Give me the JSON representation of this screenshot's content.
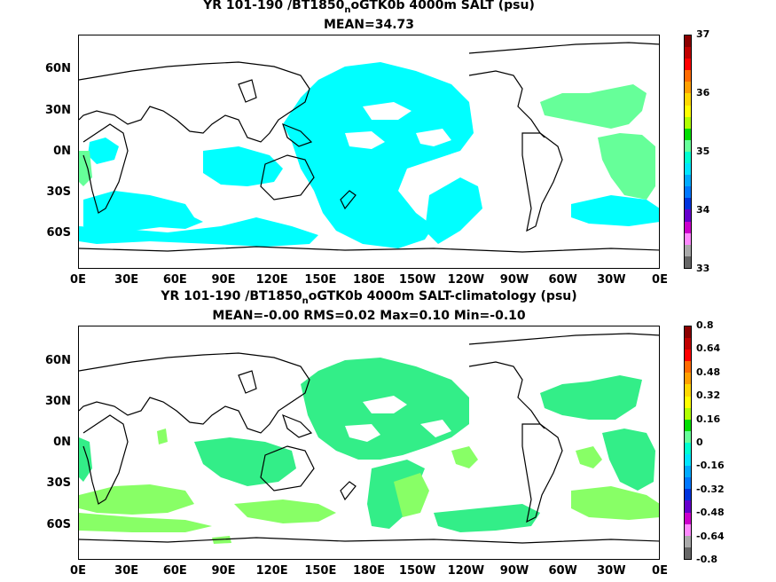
{
  "panel1": {
    "title_line1_pre": "YR 101-190 /BT1850",
    "title_sub": "n",
    "title_line1_post": "oGTK0b 4000m SALT (psu)",
    "title_line2": "MEAN=34.73",
    "colorbar_labels": [
      "37",
      "36",
      "35",
      "34",
      "33"
    ],
    "colorbar_colors": [
      "#8b0000",
      "#c00000",
      "#ff0000",
      "#ff6a00",
      "#ff9f00",
      "#ffd700",
      "#ffff00",
      "#b0ff00",
      "#00dd00",
      "#66ff99",
      "#00ffd0",
      "#00e5ff",
      "#00aaff",
      "#0077ff",
      "#0033dd",
      "#6600cc",
      "#cc00cc",
      "#ff88ff",
      "#aaaaaa",
      "#666666"
    ]
  },
  "panel2": {
    "title_line1_pre": "YR 101-190 /BT1850",
    "title_sub": "n",
    "title_line1_post": "oGTK0b 4000m SALT-climatology (psu)",
    "title_line2": "MEAN=-0.00   RMS=0.02   Max=0.10   Min=-0.10",
    "colorbar_labels": [
      "0.8",
      "0.64",
      "0.48",
      "0.32",
      "0.16",
      "0",
      "-0.16",
      "-0.32",
      "-0.48",
      "-0.64",
      "-0.8"
    ],
    "colorbar_colors": [
      "#8b0000",
      "#c00000",
      "#ff0000",
      "#ff6a00",
      "#ff9f00",
      "#ffd700",
      "#ffff00",
      "#b0ff00",
      "#00dd00",
      "#66ff99",
      "#00ffd0",
      "#00e5ff",
      "#00aaff",
      "#0077ff",
      "#0033dd",
      "#6600cc",
      "#cc00cc",
      "#ff88ff",
      "#aaaaaa",
      "#666666"
    ]
  },
  "lat_labels": [
    "60N",
    "30N",
    "0N",
    "30S",
    "60S"
  ],
  "lon_labels": [
    "0E",
    "30E",
    "60E",
    "90E",
    "120E",
    "150E",
    "180E",
    "150W",
    "120W",
    "90W",
    "60W",
    "30W",
    "0E"
  ],
  "fill_colors": {
    "panel1_main": "#00ffff",
    "panel1_secondary": "#66ff99",
    "panel2_main": "#33ee88",
    "panel2_secondary": "#88ff66"
  }
}
